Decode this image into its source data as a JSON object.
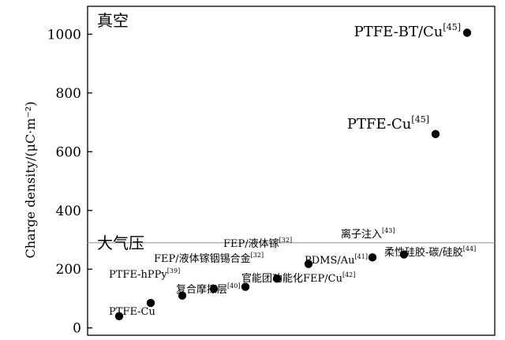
{
  "chart_data": {
    "type": "scatter",
    "ylabel": "Charge density/(μC·m⁻²)",
    "ylim": [
      -25,
      1095
    ],
    "yticks": [
      0,
      200,
      400,
      600,
      800,
      1000
    ],
    "grid": false,
    "divider": {
      "y": 290,
      "color": "#a6a6a6"
    },
    "region_labels": [
      {
        "name": "vacuum",
        "text": "真空"
      },
      {
        "name": "atmosphere",
        "text": "大气压"
      }
    ],
    "points": [
      {
        "name": "ptfe-cu",
        "x": 1,
        "y": 40,
        "label": "PTFE-Cu",
        "ref": ""
      },
      {
        "name": "ptfe-hppy",
        "x": 2,
        "y": 85,
        "label": "PTFE-hPPy",
        "ref": "[39]"
      },
      {
        "name": "composite-friction",
        "x": 3,
        "y": 110,
        "label": "复合摩擦层",
        "ref": "[40]"
      },
      {
        "name": "fep-liquid-gallium-alloy",
        "x": 4,
        "y": 133,
        "label": "FEP/液体镓铟锡合金",
        "ref": "[32]"
      },
      {
        "name": "functionalized-fep",
        "x": 5,
        "y": 140,
        "label": "官能团功能化FEP/Cu",
        "ref": "[42]"
      },
      {
        "name": "fep-liquid-gallium",
        "x": 6,
        "y": 168,
        "label": "FEP/液体镓",
        "ref": "[32]"
      },
      {
        "name": "pdms-au",
        "x": 7,
        "y": 218,
        "label": "PDMS/Au",
        "ref": "[41]"
      },
      {
        "name": "ion-injection",
        "x": 8,
        "y": 240,
        "label": "离子注入",
        "ref": "[43]"
      },
      {
        "name": "silicone-carbon",
        "x": 9,
        "y": 250,
        "label": "柔性硅胶-碳/硅胶",
        "ref": "[44]"
      },
      {
        "name": "ptfe-cu-vacuum",
        "x": 10,
        "y": 660,
        "label": "PTFE-Cu",
        "ref": "[45]"
      },
      {
        "name": "ptfe-bt-cu",
        "x": 11,
        "y": 1005,
        "label": "PTFE-BT/Cu",
        "ref": "[45]"
      }
    ]
  }
}
